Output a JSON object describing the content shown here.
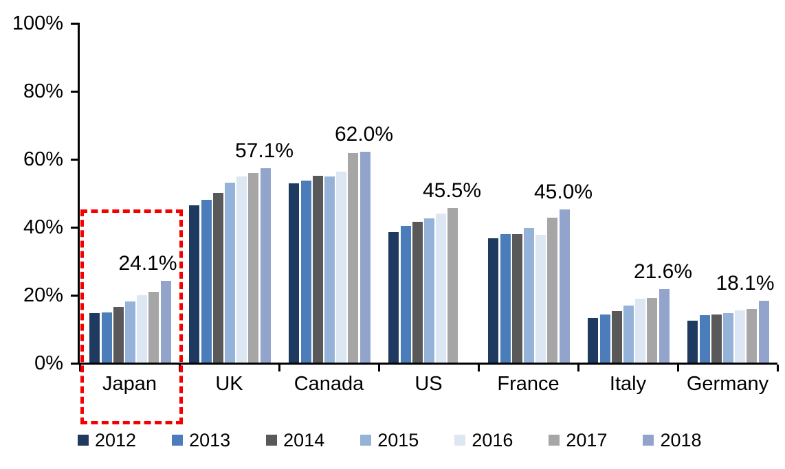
{
  "chart_data": {
    "type": "bar",
    "title": "",
    "categories": [
      "Japan",
      "UK",
      "Canada",
      "US",
      "France",
      "Italy",
      "Germany"
    ],
    "series": [
      {
        "name": "2012",
        "color": "#1F3A60",
        "values": [
          14.5,
          46.2,
          52.8,
          38.4,
          36.6,
          13.1,
          12.4
        ]
      },
      {
        "name": "2013",
        "color": "#4C7DBB",
        "values": [
          14.8,
          47.8,
          53.5,
          40.2,
          37.8,
          14.1,
          13.9
        ]
      },
      {
        "name": "2014",
        "color": "#595959",
        "values": [
          16.4,
          49.8,
          55.0,
          41.4,
          37.8,
          15.2,
          14.2
        ]
      },
      {
        "name": "2015",
        "color": "#95B3D9",
        "values": [
          17.9,
          53.0,
          54.7,
          42.4,
          39.5,
          16.8,
          14.6
        ]
      },
      {
        "name": "2016",
        "color": "#DDE6F3",
        "values": [
          19.8,
          54.7,
          56.2,
          43.8,
          37.6,
          18.8,
          15.3
        ]
      },
      {
        "name": "2017",
        "color": "#A6A6A6",
        "values": [
          20.9,
          55.7,
          61.6,
          45.5,
          42.6,
          19.0,
          15.8
        ]
      },
      {
        "name": "2018",
        "color": "#93A4CC",
        "values": [
          24.1,
          57.1,
          62.0,
          null,
          45.0,
          21.6,
          18.1
        ]
      }
    ],
    "data_labels": [
      "24.1%",
      "57.1%",
      "62.0%",
      "45.5%",
      "45.0%",
      "21.6%",
      "18.1%"
    ],
    "y_axis": {
      "tick_labels": [
        "100%",
        "80%",
        "60%",
        "40%",
        "20%",
        "0%"
      ],
      "min": 0,
      "max": 100,
      "unit": "%",
      "grid": false
    },
    "legend": {
      "position": "bottom",
      "entries": [
        "2012",
        "2013",
        "2014",
        "2015",
        "2016",
        "2017",
        "2018"
      ]
    },
    "annotations": {
      "highlight_box": {
        "category": "Japan",
        "style": "dashed",
        "color": "#FF0000"
      }
    }
  }
}
